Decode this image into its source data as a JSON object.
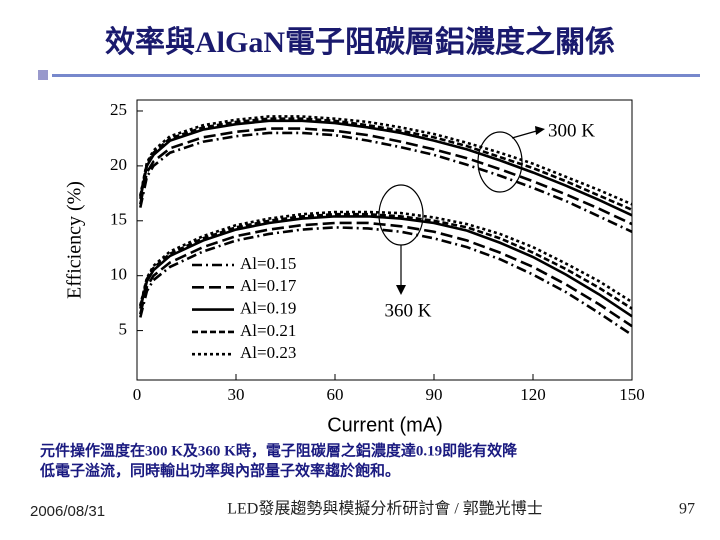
{
  "slide_title": "效率與AlGaN電子阻碳層鋁濃度之關係",
  "caption": [
    "元件操作溫度在300 K及360 K時，電子阻碳層之鋁濃度達0.19即能有效降",
    "低電子溢流，同時輸出功率與內部量子效率趨於飽和。"
  ],
  "footer": {
    "date": "2006/08/31",
    "center": "LED發展趨勢與模擬分析研討會 / 郭艷光博士",
    "page": "97"
  },
  "chart_data": {
    "type": "line",
    "x_label": "Current (mA)",
    "y_label": "Efficiency (%)",
    "annotations": [
      "300 K",
      "360 K"
    ],
    "x": [
      1,
      3,
      5,
      10,
      20,
      30,
      40,
      50,
      60,
      70,
      80,
      90,
      100,
      110,
      120,
      130,
      140,
      150
    ],
    "xlim": [
      0,
      150
    ],
    "xticks": [
      0,
      30,
      60,
      90,
      120,
      150
    ],
    "ylim": [
      0.5,
      26
    ],
    "yticks": [
      5,
      10,
      15,
      20,
      25
    ],
    "legend": "lower-left",
    "series": [
      {
        "name": "Al=0.15",
        "color": "#000000",
        "dash": "10,4,2,4",
        "values": [
          16.2,
          19,
          20,
          21.2,
          22.2,
          22.7,
          23.0,
          23.0,
          22.8,
          22.3,
          21.7,
          21.0,
          20.1,
          19.1,
          18.0,
          16.8,
          15.4,
          14.0
        ],
        "values_360": [
          6.2,
          8.6,
          9.6,
          10.8,
          12.2,
          13.2,
          13.8,
          14.2,
          14.4,
          14.3,
          14.0,
          13.4,
          12.6,
          11.5,
          10.1,
          8.5,
          6.6,
          4.6
        ]
      },
      {
        "name": "Al=0.17",
        "color": "#000000",
        "dash": "12,5",
        "values": [
          16.5,
          19.4,
          20.4,
          21.6,
          22.6,
          23.1,
          23.4,
          23.4,
          23.2,
          22.8,
          22.2,
          21.5,
          20.7,
          19.7,
          18.6,
          17.4,
          16.1,
          14.7
        ],
        "values_360": [
          6.5,
          9,
          10,
          11.2,
          12.6,
          13.6,
          14.2,
          14.6,
          14.8,
          14.8,
          14.5,
          14.0,
          13.2,
          12.1,
          10.8,
          9.2,
          7.4,
          5.4
        ]
      },
      {
        "name": "Al=0.19",
        "color": "#000000",
        "dash": "none",
        "values": [
          17,
          20,
          21,
          22.3,
          23.3,
          23.8,
          24.1,
          24.1,
          23.9,
          23.5,
          23,
          22.3,
          21.5,
          20.5,
          19.4,
          18.2,
          16.9,
          15.5
        ],
        "values_360": [
          7,
          9.5,
          10.5,
          11.8,
          13.2,
          14.2,
          14.8,
          15.2,
          15.4,
          15.4,
          15.2,
          14.8,
          14.1,
          13.0,
          11.7,
          10.1,
          8.3,
          6.3
        ]
      },
      {
        "name": "Al=0.21",
        "color": "#000000",
        "dash": "6,3",
        "values": [
          17.2,
          20.2,
          21.2,
          22.5,
          23.5,
          24.0,
          24.3,
          24.3,
          24.1,
          23.7,
          23.2,
          22.6,
          21.8,
          20.8,
          19.8,
          18.6,
          17.3,
          16.0
        ],
        "values_360": [
          7.2,
          9.7,
          10.7,
          12.0,
          13.4,
          14.4,
          15.0,
          15.4,
          15.6,
          15.6,
          15.4,
          15.0,
          14.4,
          13.4,
          12.1,
          10.6,
          8.9,
          7.0
        ]
      },
      {
        "name": "Al=0.23",
        "color": "#000000",
        "dash": "3,3",
        "values": [
          17.3,
          20.3,
          21.4,
          22.7,
          23.7,
          24.2,
          24.5,
          24.5,
          24.3,
          24.0,
          23.5,
          22.9,
          22.1,
          21.2,
          20.2,
          19.0,
          17.8,
          16.5
        ],
        "values_360": [
          7.3,
          9.8,
          10.9,
          12.2,
          13.6,
          14.6,
          15.2,
          15.6,
          15.8,
          15.8,
          15.7,
          15.3,
          14.7,
          13.8,
          12.6,
          11.1,
          9.5,
          7.6
        ]
      }
    ]
  }
}
